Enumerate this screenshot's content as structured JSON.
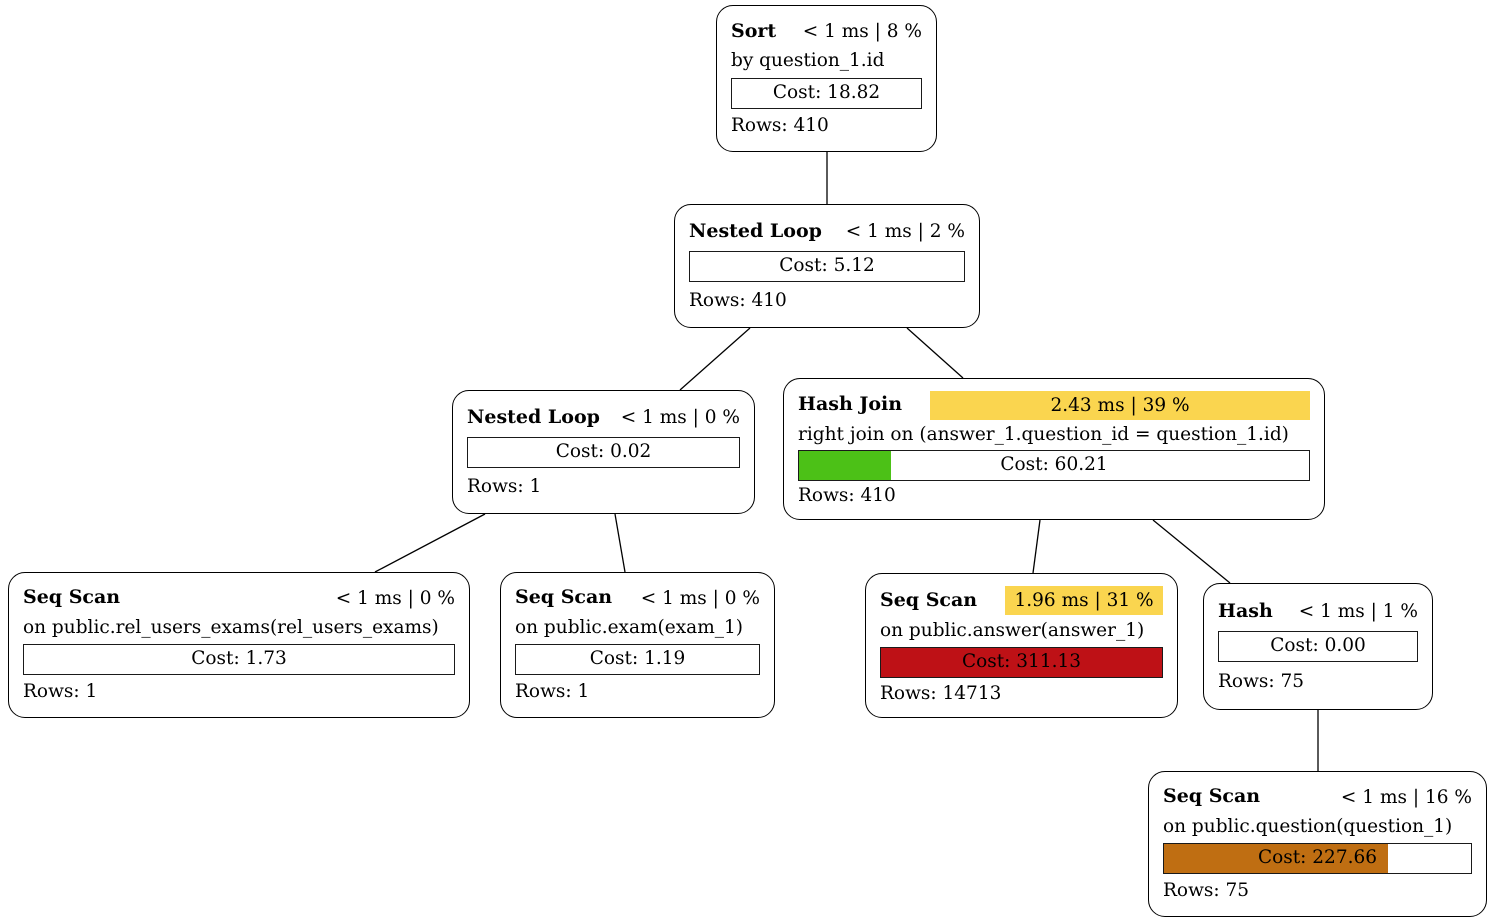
{
  "diagram_type": "query-plan-tree",
  "colors": {
    "highlight_yellow": "#FAD54F",
    "bar_green": "#4CC117",
    "bar_red": "#BE1116",
    "bar_orange": "#BF6E12",
    "edge_black": "#000000"
  },
  "nodes": [
    {
      "id": "sort",
      "title": "Sort",
      "time": "< 1 ms | 8 %",
      "time_bg": null,
      "subtitle": "by question_1.id",
      "cost_label": "Cost: 18.82",
      "cost_fill": {
        "pct": 0,
        "color": "transparent"
      },
      "rows_label": "Rows: 410"
    },
    {
      "id": "nested-loop-1",
      "title": "Nested Loop",
      "time": "< 1 ms | 2 %",
      "time_bg": null,
      "subtitle": null,
      "cost_label": "Cost: 5.12",
      "cost_fill": {
        "pct": 0,
        "color": "transparent"
      },
      "rows_label": "Rows: 410"
    },
    {
      "id": "nested-loop-2",
      "title": "Nested Loop",
      "time": "< 1 ms | 0 %",
      "time_bg": null,
      "subtitle": null,
      "cost_label": "Cost: 0.02",
      "cost_fill": {
        "pct": 0,
        "color": "transparent"
      },
      "rows_label": "Rows: 1"
    },
    {
      "id": "hash-join",
      "title": "Hash Join",
      "time": "2.43 ms | 39 %",
      "time_bg": "#FAD54F",
      "subtitle": "right join on (answer_1.question_id = question_1.id)",
      "cost_label": "Cost: 60.21",
      "cost_fill": {
        "pct": 18,
        "color": "#4CC117"
      },
      "rows_label": "Rows: 410"
    },
    {
      "id": "seq-scan-rel",
      "title": "Seq Scan",
      "time": "< 1 ms | 0 %",
      "time_bg": null,
      "subtitle": "on public.rel_users_exams(rel_users_exams)",
      "cost_label": "Cost: 1.73",
      "cost_fill": {
        "pct": 0,
        "color": "transparent"
      },
      "rows_label": "Rows: 1"
    },
    {
      "id": "seq-scan-exam",
      "title": "Seq Scan",
      "time": "< 1 ms | 0 %",
      "time_bg": null,
      "subtitle": "on public.exam(exam_1)",
      "cost_label": "Cost: 1.19",
      "cost_fill": {
        "pct": 0,
        "color": "transparent"
      },
      "rows_label": "Rows: 1"
    },
    {
      "id": "seq-scan-answer",
      "title": "Seq Scan",
      "time": "1.96 ms | 31 %",
      "time_bg": "#FAD54F",
      "subtitle": "on public.answer(answer_1)",
      "cost_label": "Cost: 311.13",
      "cost_fill": {
        "pct": 100,
        "color": "#BE1116"
      },
      "rows_label": "Rows: 14713"
    },
    {
      "id": "hash",
      "title": "Hash",
      "time": "< 1 ms | 1 %",
      "time_bg": null,
      "subtitle": null,
      "cost_label": "Cost: 0.00",
      "cost_fill": {
        "pct": 0,
        "color": "transparent"
      },
      "rows_label": "Rows: 75"
    },
    {
      "id": "seq-scan-question",
      "title": "Seq Scan",
      "time": "< 1 ms | 16 %",
      "time_bg": null,
      "subtitle": "on public.question(question_1)",
      "cost_label": "Cost: 227.66",
      "cost_fill": {
        "pct": 73,
        "color": "#BF6E12"
      },
      "rows_label": "Rows: 75"
    }
  ],
  "edges": [
    {
      "from": "sort",
      "to": "nested-loop-1"
    },
    {
      "from": "nested-loop-1",
      "to": "nested-loop-2"
    },
    {
      "from": "nested-loop-1",
      "to": "hash-join"
    },
    {
      "from": "nested-loop-2",
      "to": "seq-scan-rel"
    },
    {
      "from": "nested-loop-2",
      "to": "seq-scan-exam"
    },
    {
      "from": "hash-join",
      "to": "seq-scan-answer"
    },
    {
      "from": "hash-join",
      "to": "hash"
    },
    {
      "from": "hash",
      "to": "seq-scan-question"
    }
  ]
}
